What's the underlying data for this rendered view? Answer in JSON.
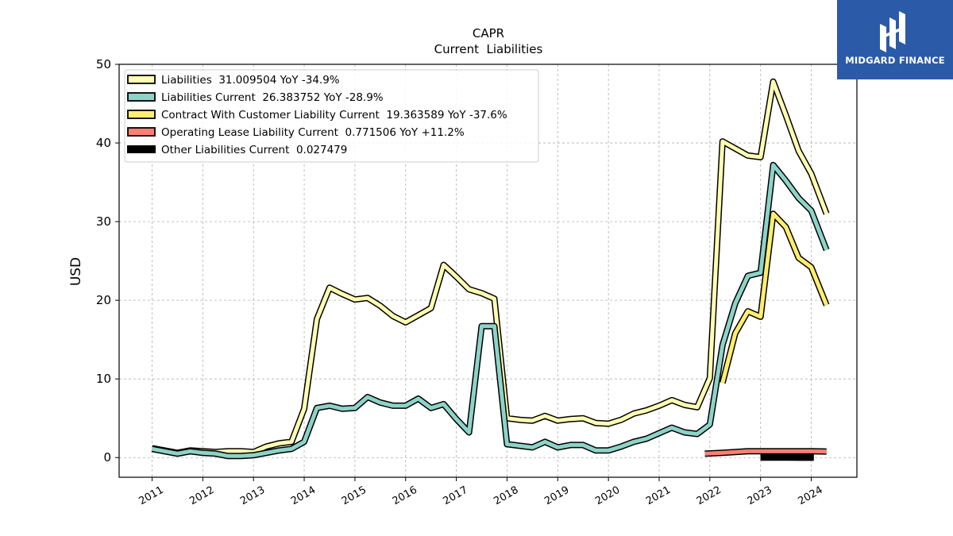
{
  "chart_data": {
    "type": "line",
    "title": "CAPR",
    "subtitle": "Current  Liabilities",
    "ylabel": "USD",
    "xlabel": "",
    "ylim": [
      -2.5,
      50
    ],
    "xlim": [
      2010.35,
      2024.9
    ],
    "yticks": [
      0,
      10,
      20,
      30,
      40,
      50
    ],
    "xticks": [
      2011,
      2012,
      2013,
      2014,
      2015,
      2016,
      2017,
      2018,
      2019,
      2020,
      2021,
      2022,
      2023,
      2024
    ],
    "grid": true,
    "legend_position": "top-left",
    "series": [
      {
        "name": "Liabilities",
        "legend_label": "Liabilities  31.009504 YoY -34.9%",
        "color": "#ffffb3",
        "points": [
          [
            2011.0,
            1.2
          ],
          [
            2011.5,
            0.6
          ],
          [
            2011.75,
            0.9
          ],
          [
            2012.0,
            0.8
          ],
          [
            2012.25,
            0.7
          ],
          [
            2012.5,
            0.8
          ],
          [
            2012.75,
            0.8
          ],
          [
            2013.0,
            0.7
          ],
          [
            2013.25,
            1.4
          ],
          [
            2013.5,
            1.8
          ],
          [
            2013.75,
            2.0
          ],
          [
            2014.0,
            6.2
          ],
          [
            2014.25,
            17.6
          ],
          [
            2014.5,
            21.6
          ],
          [
            2014.75,
            20.8
          ],
          [
            2015.0,
            20.1
          ],
          [
            2015.25,
            20.3
          ],
          [
            2015.5,
            19.3
          ],
          [
            2015.75,
            18.0
          ],
          [
            2016.0,
            17.2
          ],
          [
            2016.25,
            18.1
          ],
          [
            2016.5,
            19.0
          ],
          [
            2016.75,
            24.5
          ],
          [
            2017.0,
            23.0
          ],
          [
            2017.25,
            21.4
          ],
          [
            2017.5,
            20.9
          ],
          [
            2017.75,
            20.2
          ],
          [
            2018.0,
            5.0
          ],
          [
            2018.25,
            4.8
          ],
          [
            2018.5,
            4.7
          ],
          [
            2018.75,
            5.3
          ],
          [
            2019.0,
            4.7
          ],
          [
            2019.25,
            4.9
          ],
          [
            2019.5,
            5.0
          ],
          [
            2019.75,
            4.4
          ],
          [
            2020.0,
            4.3
          ],
          [
            2020.25,
            4.8
          ],
          [
            2020.5,
            5.6
          ],
          [
            2020.75,
            6.0
          ],
          [
            2021.0,
            6.6
          ],
          [
            2021.25,
            7.3
          ],
          [
            2021.5,
            6.7
          ],
          [
            2021.75,
            6.4
          ],
          [
            2022.0,
            10.1
          ],
          [
            2022.25,
            40.2
          ],
          [
            2022.5,
            39.3
          ],
          [
            2022.75,
            38.4
          ],
          [
            2023.0,
            38.2
          ],
          [
            2023.25,
            47.8
          ],
          [
            2023.5,
            43.5
          ],
          [
            2023.75,
            39.0
          ],
          [
            2024.0,
            36.1
          ],
          [
            2024.3,
            31.0
          ]
        ]
      },
      {
        "name": "Liabilities Current",
        "legend_label": "Liabilities Current  26.383752 YoY -28.9%",
        "color": "#8dd3c7",
        "points": [
          [
            2011.0,
            1.1
          ],
          [
            2011.5,
            0.5
          ],
          [
            2011.75,
            0.8
          ],
          [
            2012.0,
            0.6
          ],
          [
            2012.25,
            0.5
          ],
          [
            2012.5,
            0.2
          ],
          [
            2012.75,
            0.2
          ],
          [
            2013.0,
            0.3
          ],
          [
            2013.25,
            0.6
          ],
          [
            2013.5,
            0.9
          ],
          [
            2013.75,
            1.1
          ],
          [
            2014.0,
            2.0
          ],
          [
            2014.25,
            6.3
          ],
          [
            2014.5,
            6.6
          ],
          [
            2014.75,
            6.2
          ],
          [
            2015.0,
            6.3
          ],
          [
            2015.25,
            7.7
          ],
          [
            2015.5,
            7.0
          ],
          [
            2015.75,
            6.6
          ],
          [
            2016.0,
            6.6
          ],
          [
            2016.25,
            7.5
          ],
          [
            2016.5,
            6.3
          ],
          [
            2016.75,
            6.8
          ],
          [
            2017.0,
            4.9
          ],
          [
            2017.25,
            3.2
          ],
          [
            2017.5,
            16.7
          ],
          [
            2017.75,
            16.7
          ],
          [
            2018.0,
            1.7
          ],
          [
            2018.25,
            1.5
          ],
          [
            2018.5,
            1.3
          ],
          [
            2018.75,
            2.0
          ],
          [
            2019.0,
            1.3
          ],
          [
            2019.25,
            1.6
          ],
          [
            2019.5,
            1.6
          ],
          [
            2019.75,
            0.9
          ],
          [
            2020.0,
            0.9
          ],
          [
            2020.25,
            1.4
          ],
          [
            2020.5,
            2.0
          ],
          [
            2020.75,
            2.4
          ],
          [
            2021.0,
            3.1
          ],
          [
            2021.25,
            3.8
          ],
          [
            2021.5,
            3.2
          ],
          [
            2021.75,
            3.0
          ],
          [
            2022.0,
            4.2
          ],
          [
            2022.25,
            14.3
          ],
          [
            2022.5,
            19.6
          ],
          [
            2022.75,
            23.1
          ],
          [
            2023.0,
            23.5
          ],
          [
            2023.25,
            37.2
          ],
          [
            2023.5,
            35.2
          ],
          [
            2023.75,
            33.0
          ],
          [
            2024.0,
            31.4
          ],
          [
            2024.3,
            26.4
          ]
        ]
      },
      {
        "name": "Contract With Customer Liability Current",
        "legend_label": "Contract With Customer Liability Current  19.363589 YoY -37.6%",
        "color": "#ffed6f",
        "points": [
          [
            2022.25,
            9.5
          ],
          [
            2022.5,
            15.8
          ],
          [
            2022.75,
            18.6
          ],
          [
            2023.0,
            17.9
          ],
          [
            2023.25,
            31.0
          ],
          [
            2023.5,
            29.3
          ],
          [
            2023.75,
            25.4
          ],
          [
            2024.0,
            24.2
          ],
          [
            2024.3,
            19.4
          ]
        ]
      },
      {
        "name": "Operating Lease Liability Current",
        "legend_label": "Operating Lease Liability Current  0.771506 YoY +11.2%",
        "color": "#fb8072",
        "points": [
          [
            2021.9,
            0.5
          ],
          [
            2022.25,
            0.6
          ],
          [
            2022.5,
            0.7
          ],
          [
            2022.75,
            0.8
          ],
          [
            2023.0,
            0.8
          ],
          [
            2023.25,
            0.8
          ],
          [
            2023.5,
            0.8
          ],
          [
            2023.75,
            0.8
          ],
          [
            2024.0,
            0.8
          ],
          [
            2024.3,
            0.77
          ]
        ]
      },
      {
        "name": "Other Liabilities Current",
        "legend_label": "Other Liabilities Current  0.027479",
        "color": "#000000",
        "points": [
          [
            2023.0,
            0.05
          ],
          [
            2023.25,
            0.05
          ],
          [
            2023.5,
            0.04
          ],
          [
            2023.75,
            0.03
          ],
          [
            2024.05,
            0.03
          ]
        ]
      }
    ]
  },
  "logo": {
    "text": "MIDGARD FINANCE",
    "bg_color": "#2b5aa8",
    "icon": "midgard-logo-icon"
  }
}
